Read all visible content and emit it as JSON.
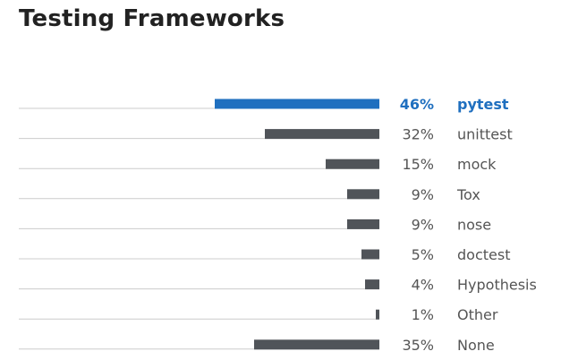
{
  "chart_data": {
    "type": "bar",
    "orientation": "horizontal",
    "title": "Testing Frameworks",
    "categories": [
      "pytest",
      "unittest",
      "mock",
      "Tox",
      "nose",
      "doctest",
      "Hypothesis",
      "Other",
      "None"
    ],
    "values": [
      46,
      32,
      15,
      9,
      9,
      5,
      4,
      1,
      35
    ],
    "value_labels": [
      "46%",
      "32%",
      "15%",
      "9%",
      "9%",
      "5%",
      "4%",
      "1%",
      "35%"
    ],
    "unit": "%",
    "highlight_index": 0,
    "xlim": [
      0,
      100
    ],
    "grid": false,
    "legend": "none",
    "colors": {
      "highlight": "#1f6fbf",
      "bar": "#505459",
      "track": "#cccccc",
      "text": "#555555",
      "title": "#222222"
    }
  }
}
